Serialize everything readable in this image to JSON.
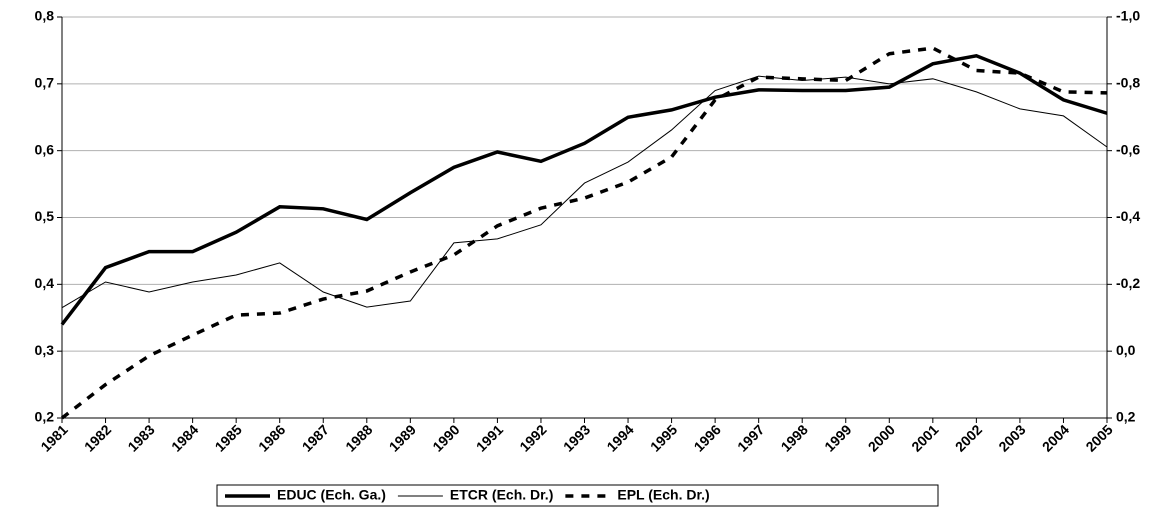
{
  "chart_data": {
    "type": "line",
    "categories": [
      "1981",
      "1982",
      "1983",
      "1984",
      "1985",
      "1986",
      "1987",
      "1988",
      "1989",
      "1990",
      "1991",
      "1992",
      "1993",
      "1994",
      "1995",
      "1996",
      "1997",
      "1998",
      "1999",
      "2000",
      "2001",
      "2002",
      "2003",
      "2004",
      "2005"
    ],
    "ylim": [
      0.2,
      0.8
    ],
    "yticks": [
      {
        "value": 0.2,
        "label": "0,2"
      },
      {
        "value": 0.3,
        "label": "0,3"
      },
      {
        "value": 0.4,
        "label": "0,4"
      },
      {
        "value": 0.5,
        "label": "0,5"
      },
      {
        "value": 0.6,
        "label": "0,6"
      },
      {
        "value": 0.7,
        "label": "0,7"
      },
      {
        "value": 0.8,
        "label": "0,8"
      }
    ],
    "y2lim": [
      0.2,
      -1.0
    ],
    "y2ticks": [
      {
        "value": 0.2,
        "label": "0,2"
      },
      {
        "value": 0.0,
        "label": "0,0"
      },
      {
        "value": -0.2,
        "label": "-0,2"
      },
      {
        "value": -0.4,
        "label": "-0,4"
      },
      {
        "value": -0.6,
        "label": "-0,6"
      },
      {
        "value": -0.8,
        "label": "-0,8"
      },
      {
        "value": -1.0,
        "label": "-1,0"
      }
    ],
    "grid": true,
    "legend": "bottom",
    "series": [
      {
        "name": "EDUC (Ech. Ga.)",
        "color": "#000000",
        "values": [
          0.34,
          0.425,
          0.449,
          0.449,
          0.478,
          0.516,
          0.513,
          0.497,
          0.537,
          0.575,
          0.598,
          0.584,
          0.611,
          0.65,
          0.661,
          0.68,
          0.691,
          0.69,
          0.69,
          0.695,
          0.73,
          0.742,
          0.716,
          0.676,
          0.656
        ]
      },
      {
        "name": "ETCR (Ech. Dr.)",
        "color": "#000000",
        "axis": "y2",
        "values": [
          -0.13,
          -0.207,
          -0.177,
          -0.207,
          -0.228,
          -0.264,
          -0.177,
          -0.132,
          -0.15,
          -0.324,
          -0.336,
          -0.378,
          -0.503,
          -0.566,
          -0.662,
          -0.78,
          -0.823,
          -0.81,
          -0.82,
          -0.8,
          -0.815,
          -0.776,
          -0.725,
          -0.704,
          -0.611
        ]
      },
      {
        "name": "EPL (Ech. Dr.)",
        "color": "#000000",
        "axis": "y2",
        "values": [
          0.2,
          0.1,
          0.014,
          -0.048,
          -0.108,
          -0.114,
          -0.156,
          -0.18,
          -0.237,
          -0.288,
          -0.375,
          -0.428,
          -0.458,
          -0.506,
          -0.581,
          -0.752,
          -0.82,
          -0.815,
          -0.81,
          -0.89,
          -0.907,
          -0.84,
          -0.832,
          -0.776,
          -0.773
        ]
      }
    ]
  }
}
